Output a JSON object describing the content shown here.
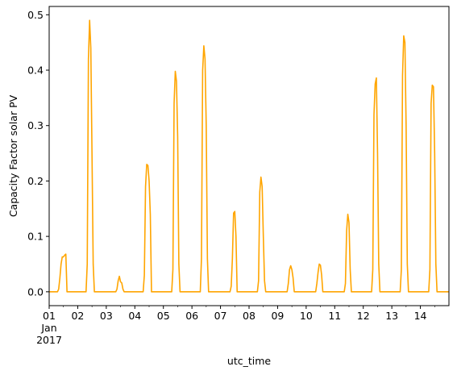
{
  "chart_data": {
    "type": "line",
    "title": "",
    "xlabel": "utc_time",
    "ylabel": "Capacity Factor solar PV",
    "xlim": [
      "2017-01-01T00:00",
      "2017-01-15T00:00"
    ],
    "ylim": [
      -0.025,
      0.515
    ],
    "grid": false,
    "legend": "none",
    "line_color": "#FFA500",
    "x_ticks": [
      {
        "day": "01",
        "month": "Jan",
        "year": "2017"
      },
      {
        "day": "02"
      },
      {
        "day": "03"
      },
      {
        "day": "04"
      },
      {
        "day": "05"
      },
      {
        "day": "06"
      },
      {
        "day": "07"
      },
      {
        "day": "08"
      },
      {
        "day": "09"
      },
      {
        "day": "10"
      },
      {
        "day": "11"
      },
      {
        "day": "12"
      },
      {
        "day": "13"
      },
      {
        "day": "14"
      }
    ],
    "y_ticks": [
      "0.0",
      "0.1",
      "0.2",
      "0.3",
      "0.4",
      "0.5"
    ],
    "y_tick_values": [
      0.0,
      0.1,
      0.2,
      0.3,
      0.4,
      0.5
    ],
    "series": [
      {
        "x": [
          "2017-01-01T00:00",
          "2017-01-01T07:00",
          "2017-01-01T08:00",
          "2017-01-01T09:00",
          "2017-01-01T10:00",
          "2017-01-01T11:00",
          "2017-01-01T12:00",
          "2017-01-01T13:00",
          "2017-01-01T14:00",
          "2017-01-01T15:00",
          "2017-01-01T16:00",
          "2017-01-02T07:00",
          "2017-01-02T08:00",
          "2017-01-02T09:00",
          "2017-01-02T10:00",
          "2017-01-02T11:00",
          "2017-01-02T12:00",
          "2017-01-02T13:00",
          "2017-01-02T14:00",
          "2017-01-02T15:00",
          "2017-01-03T07:00",
          "2017-01-03T08:00",
          "2017-01-03T09:00",
          "2017-01-03T10:00",
          "2017-01-03T11:00",
          "2017-01-03T12:00",
          "2017-01-03T13:00",
          "2017-01-03T14:00",
          "2017-01-03T15:00",
          "2017-01-04T07:00",
          "2017-01-04T08:00",
          "2017-01-04T09:00",
          "2017-01-04T10:00",
          "2017-01-04T11:00",
          "2017-01-04T12:00",
          "2017-01-04T13:00",
          "2017-01-04T14:00",
          "2017-01-04T15:00",
          "2017-01-05T07:00",
          "2017-01-05T08:00",
          "2017-01-05T09:00",
          "2017-01-05T10:00",
          "2017-01-05T11:00",
          "2017-01-05T12:00",
          "2017-01-05T13:00",
          "2017-01-05T14:00",
          "2017-01-05T15:00",
          "2017-01-06T07:00",
          "2017-01-06T08:00",
          "2017-01-06T09:00",
          "2017-01-06T10:00",
          "2017-01-06T11:00",
          "2017-01-06T12:00",
          "2017-01-06T13:00",
          "2017-01-06T14:00",
          "2017-01-06T15:00",
          "2017-01-07T07:00",
          "2017-01-07T08:00",
          "2017-01-07T09:00",
          "2017-01-07T10:00",
          "2017-01-07T11:00",
          "2017-01-07T12:00",
          "2017-01-07T13:00",
          "2017-01-07T14:00",
          "2017-01-07T15:00",
          "2017-01-08T07:00",
          "2017-01-08T08:00",
          "2017-01-08T09:00",
          "2017-01-08T10:00",
          "2017-01-08T11:00",
          "2017-01-08T12:00",
          "2017-01-08T13:00",
          "2017-01-08T14:00",
          "2017-01-08T15:00",
          "2017-01-09T07:00",
          "2017-01-09T08:00",
          "2017-01-09T09:00",
          "2017-01-09T10:00",
          "2017-01-09T11:00",
          "2017-01-09T12:00",
          "2017-01-09T13:00",
          "2017-01-09T14:00",
          "2017-01-09T15:00",
          "2017-01-10T07:00",
          "2017-01-10T08:00",
          "2017-01-10T09:00",
          "2017-01-10T10:00",
          "2017-01-10T11:00",
          "2017-01-10T12:00",
          "2017-01-10T13:00",
          "2017-01-10T14:00",
          "2017-01-10T15:00",
          "2017-01-11T07:00",
          "2017-01-11T08:00",
          "2017-01-11T09:00",
          "2017-01-11T10:00",
          "2017-01-11T11:00",
          "2017-01-11T12:00",
          "2017-01-11T13:00",
          "2017-01-11T14:00",
          "2017-01-11T15:00",
          "2017-01-12T07:00",
          "2017-01-12T08:00",
          "2017-01-12T09:00",
          "2017-01-12T10:00",
          "2017-01-12T11:00",
          "2017-01-12T12:00",
          "2017-01-12T13:00",
          "2017-01-12T14:00",
          "2017-01-12T15:00",
          "2017-01-13T07:00",
          "2017-01-13T08:00",
          "2017-01-13T09:00",
          "2017-01-13T10:00",
          "2017-01-13T11:00",
          "2017-01-13T12:00",
          "2017-01-13T13:00",
          "2017-01-13T14:00",
          "2017-01-13T15:00",
          "2017-01-14T07:00",
          "2017-01-14T08:00",
          "2017-01-14T09:00",
          "2017-01-14T10:00",
          "2017-01-14T11:00",
          "2017-01-14T12:00",
          "2017-01-14T13:00",
          "2017-01-14T14:00",
          "2017-01-14T15:00",
          "2017-01-15T00:00"
        ],
        "y": [
          0,
          0,
          0.005,
          0.025,
          0.05,
          0.063,
          0.063,
          0.066,
          0.068,
          0,
          0,
          0,
          0.05,
          0.42,
          0.49,
          0.44,
          0.25,
          0.05,
          0,
          0,
          0,
          0,
          0.005,
          0.02,
          0.028,
          0.018,
          0.016,
          0.005,
          0,
          0,
          0.03,
          0.19,
          0.23,
          0.228,
          0.2,
          0.14,
          0,
          0,
          0,
          0.04,
          0.34,
          0.398,
          0.38,
          0.28,
          0.05,
          0,
          0,
          0,
          0.06,
          0.4,
          0.444,
          0.42,
          0.3,
          0.06,
          0,
          0,
          0,
          0,
          0.01,
          0.06,
          0.142,
          0.145,
          0.1,
          0,
          0,
          0,
          0.02,
          0.18,
          0.207,
          0.19,
          0.1,
          0.02,
          0,
          0,
          0,
          0,
          0.015,
          0.04,
          0.047,
          0.04,
          0.025,
          0,
          0,
          0,
          0,
          0.015,
          0.035,
          0.05,
          0.048,
          0.03,
          0,
          0,
          0,
          0,
          0.015,
          0.11,
          0.14,
          0.125,
          0.04,
          0,
          0,
          0,
          0.04,
          0.32,
          0.375,
          0.386,
          0.25,
          0.05,
          0,
          0,
          0,
          0.04,
          0.39,
          0.462,
          0.45,
          0.3,
          0.05,
          0,
          0,
          0,
          0.04,
          0.34,
          0.373,
          0.37,
          0.25,
          0.05,
          0,
          0,
          0
        ]
      }
    ]
  }
}
